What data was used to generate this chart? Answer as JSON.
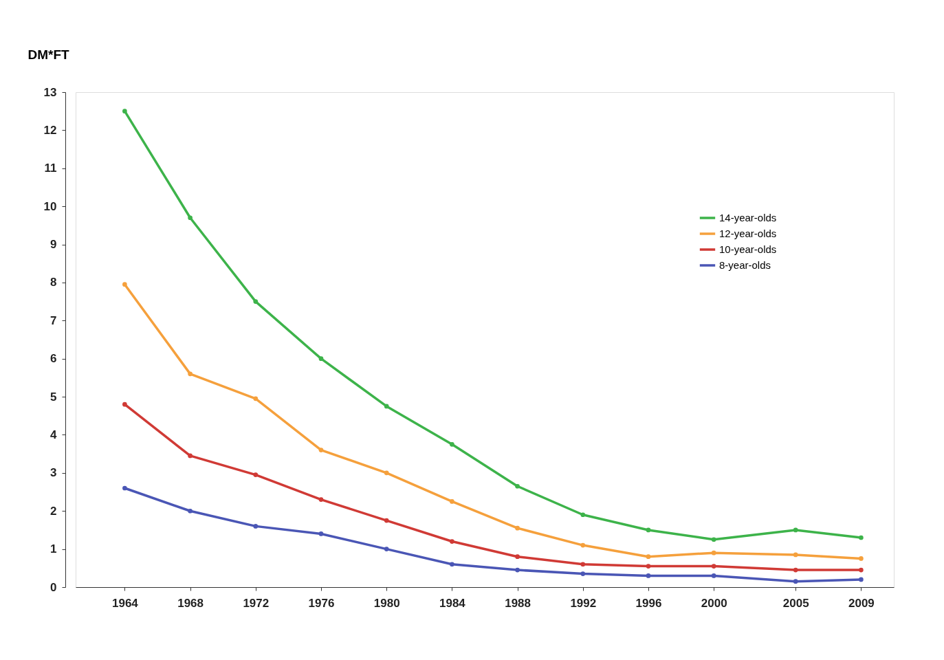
{
  "chart_data": {
    "type": "line",
    "ylabel": "DM*FT",
    "x": [
      1964,
      1968,
      1972,
      1976,
      1980,
      1984,
      1988,
      1992,
      1996,
      2000,
      2005,
      2009
    ],
    "xlim": [
      1961,
      2011
    ],
    "xticks": [
      1964,
      1968,
      1972,
      1976,
      1980,
      1984,
      1988,
      1992,
      1996,
      2000,
      2005,
      2009
    ],
    "ylim": [
      0,
      13
    ],
    "yticks": [
      0,
      1,
      2,
      3,
      4,
      5,
      6,
      7,
      8,
      9,
      10,
      11,
      12,
      13
    ],
    "grid": false,
    "legend": "top right",
    "marker": "circle",
    "line_style": "solid",
    "series": [
      {
        "name": "14-year-olds",
        "color": "#3db34a",
        "values": [
          12.5,
          9.7,
          7.5,
          6.0,
          4.75,
          3.75,
          2.65,
          1.9,
          1.5,
          1.25,
          1.5,
          1.3
        ]
      },
      {
        "name": "12-year-olds",
        "color": "#f5a03c",
        "values": [
          7.95,
          5.6,
          4.95,
          3.6,
          3.0,
          2.25,
          1.55,
          1.1,
          0.8,
          0.9,
          0.85,
          0.75
        ]
      },
      {
        "name": "10-year-olds",
        "color": "#d03a35",
        "values": [
          4.8,
          3.45,
          2.95,
          2.3,
          1.75,
          1.2,
          0.8,
          0.6,
          0.55,
          0.55,
          0.45,
          0.45
        ]
      },
      {
        "name": "8-year-olds",
        "color": "#4a56b5",
        "values": [
          2.6,
          2.0,
          1.6,
          1.4,
          1.0,
          0.6,
          0.45,
          0.35,
          0.3,
          0.3,
          0.15,
          0.2
        ]
      }
    ]
  }
}
